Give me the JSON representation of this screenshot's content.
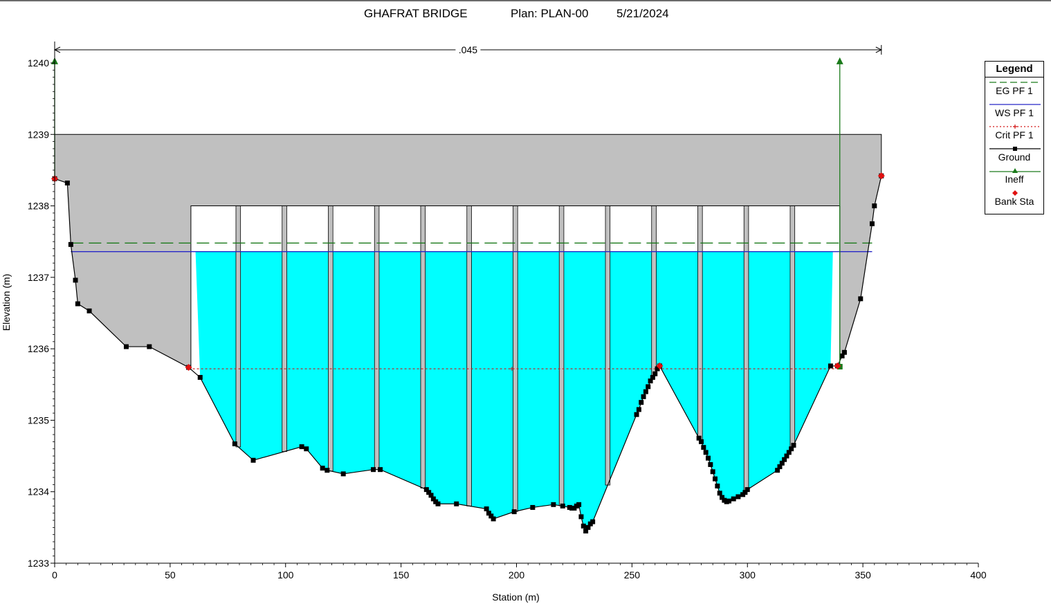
{
  "title": {
    "name": "GHAFRAT BRIDGE",
    "plan": "Plan: PLAN-00",
    "date": "5/21/2024"
  },
  "legend": {
    "title": "Legend",
    "items": [
      {
        "label": "EG PF 1",
        "color": "#1a7a1a",
        "style": "dashed"
      },
      {
        "label": "WS PF 1",
        "color": "#2626c8",
        "style": "solid"
      },
      {
        "label": "Crit PF 1",
        "color": "#d21414",
        "style": "dotted-plus"
      },
      {
        "label": "Ground",
        "color": "#000000",
        "style": "solid-square"
      },
      {
        "label": "Ineff",
        "color": "#1a7a1a",
        "style": "solid-triangle"
      },
      {
        "label": "Bank Sta",
        "color": "#e01010",
        "style": "diamond"
      }
    ]
  },
  "chart_data": {
    "type": "line",
    "title": "GHAFRAT BRIDGE       Plan: PLAN-00     5/21/2024",
    "xlabel": "Station (m)",
    "ylabel": "Elevation (m)",
    "xlim": [
      0,
      400
    ],
    "ylim": [
      1233,
      1240.3
    ],
    "xticks": [
      0,
      50,
      100,
      150,
      200,
      250,
      300,
      350,
      400
    ],
    "yticks": [
      1233,
      1234,
      1235,
      1236,
      1237,
      1238,
      1239,
      1240
    ],
    "manning_n": {
      "label": ".045",
      "x_from": 0,
      "x_to": 358
    },
    "series": [
      {
        "name": "EG PF 1",
        "x": [
          7,
          354
        ],
        "y": [
          1237.48,
          1237.48
        ],
        "color": "#1a7a1a"
      },
      {
        "name": "WS PF 1",
        "x": [
          7,
          354
        ],
        "y": [
          1237.36,
          1237.36
        ],
        "color": "#2626c8"
      },
      {
        "name": "Crit PF 1",
        "x": [
          58,
          338
        ],
        "y": [
          1235.72,
          1235.72
        ],
        "color": "#d21414"
      },
      {
        "name": "Ground",
        "color": "#000000",
        "x": [
          0,
          5.5,
          7,
          9,
          10,
          15,
          31,
          41,
          58,
          63,
          78,
          86,
          107,
          109,
          116,
          118,
          125,
          138,
          141,
          161,
          162,
          163,
          164,
          165,
          166,
          174,
          187,
          188,
          189,
          190,
          199,
          207,
          216,
          220,
          223,
          224,
          225,
          226,
          227,
          228,
          229,
          230,
          231,
          232,
          233,
          252,
          253,
          254,
          255,
          256,
          257,
          258,
          259,
          260,
          261,
          262,
          279,
          280,
          281,
          282,
          283,
          284,
          285,
          286,
          287,
          288,
          289,
          290,
          291,
          292,
          294,
          296,
          298,
          299,
          300,
          313,
          314,
          315,
          316,
          317,
          318,
          319,
          320,
          336,
          339,
          341,
          342,
          349,
          354,
          355,
          358
        ],
        "y": [
          1238.38,
          1238.32,
          1237.46,
          1236.96,
          1236.63,
          1236.53,
          1236.03,
          1236.03,
          1235.74,
          1235.6,
          1234.67,
          1234.44,
          1234.63,
          1234.6,
          1234.33,
          1234.3,
          1234.25,
          1234.31,
          1234.31,
          1234.03,
          1233.99,
          1233.95,
          1233.9,
          1233.86,
          1233.83,
          1233.83,
          1233.76,
          1233.7,
          1233.66,
          1233.62,
          1233.72,
          1233.78,
          1233.82,
          1233.8,
          1233.78,
          1233.77,
          1233.77,
          1233.8,
          1233.82,
          1233.65,
          1233.52,
          1233.45,
          1233.5,
          1233.55,
          1233.58,
          1235.08,
          1235.15,
          1235.25,
          1235.33,
          1235.4,
          1235.47,
          1235.55,
          1235.6,
          1235.65,
          1235.72,
          1235.76,
          1234.75,
          1234.7,
          1234.62,
          1234.55,
          1234.47,
          1234.38,
          1234.28,
          1234.18,
          1234.08,
          1233.98,
          1233.92,
          1233.88,
          1233.86,
          1233.87,
          1233.9,
          1233.93,
          1233.96,
          1233.99,
          1234.03,
          1234.3,
          1234.35,
          1234.4,
          1234.45,
          1234.5,
          1234.55,
          1234.6,
          1234.65,
          1235.76,
          1235.76,
          1235.9,
          1235.95,
          1236.7,
          1237.75,
          1238.0,
          1238.42
        ]
      },
      {
        "name": "Ineff",
        "color": "#1a7a1a",
        "points": [
          {
            "x": 0,
            "y_top": 1240.02,
            "y_bottom": 1238.38
          },
          {
            "x": 340,
            "y_top": 1240.02,
            "y_bottom": 1235.75
          }
        ]
      },
      {
        "name": "Bank Sta",
        "color": "#e01010",
        "points": [
          {
            "x": 0,
            "y": 1238.38
          },
          {
            "x": 58,
            "y": 1235.74
          },
          {
            "x": 262,
            "y": 1235.76
          },
          {
            "x": 339,
            "y": 1235.76
          },
          {
            "x": 358,
            "y": 1238.42
          }
        ]
      }
    ],
    "bridge": {
      "deck_top": 1239.0,
      "low_chord": 1238.0,
      "deck_from": 0,
      "deck_to": 358,
      "opening_from": 59,
      "opening_to": 340,
      "piers": [
        {
          "x_from": 78.5,
          "x_to": 80.5
        },
        {
          "x_from": 98.5,
          "x_to": 100.5
        },
        {
          "x_from": 118.5,
          "x_to": 120.5
        },
        {
          "x_from": 138.5,
          "x_to": 140.5
        },
        {
          "x_from": 158.5,
          "x_to": 160.5
        },
        {
          "x_from": 178.5,
          "x_to": 180.5
        },
        {
          "x_from": 198.5,
          "x_to": 200.5
        },
        {
          "x_from": 218.5,
          "x_to": 220.5
        },
        {
          "x_from": 238.5,
          "x_to": 240.5
        },
        {
          "x_from": 258.5,
          "x_to": 260.5
        },
        {
          "x_from": 278.5,
          "x_to": 280.5
        },
        {
          "x_from": 298.5,
          "x_to": 300.5
        },
        {
          "x_from": 318.5,
          "x_to": 320.5
        }
      ]
    },
    "grid": false,
    "legend_position": "right"
  }
}
